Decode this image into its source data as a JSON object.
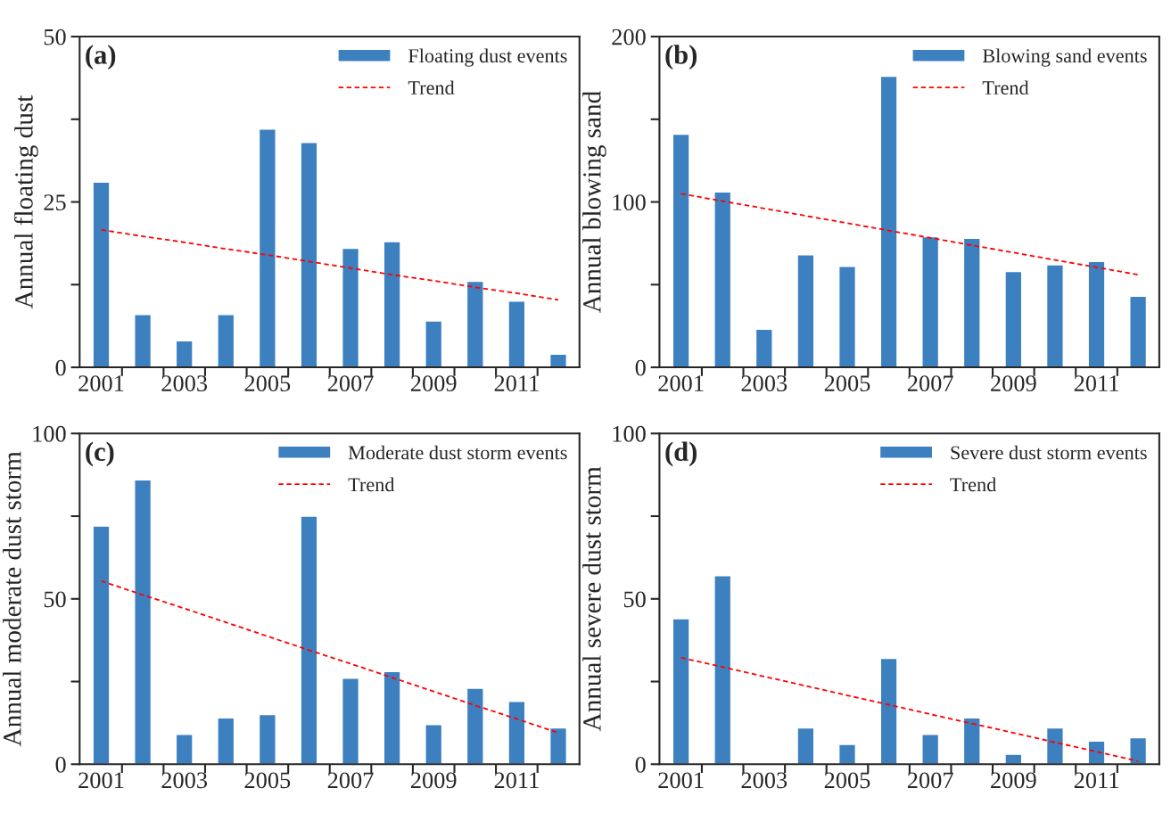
{
  "chart_data": [
    {
      "type": "bar",
      "ylabel": "Annual floating dust",
      "annotations": [
        "(a)"
      ],
      "categories": [
        "2001",
        null,
        "2003",
        null,
        "2005",
        null,
        "2007",
        null,
        "2009",
        null,
        "2011",
        null
      ],
      "legend": "top right",
      "ylim": [
        0,
        50
      ],
      "yticks": [
        0,
        {
          "value": 12.5,
          "label": null
        },
        25,
        {
          "value": 37.5,
          "label": null
        },
        50
      ],
      "series": [
        {
          "name": "Floating dust events",
          "color": "#3d80c0",
          "values": [
            28,
            8,
            4,
            8,
            36,
            34,
            18,
            19,
            7,
            13,
            10,
            2
          ]
        },
        {
          "name": "Trend",
          "type": "line",
          "line_style": "dashed",
          "color": "#ff0000",
          "values": [
            20.8,
            19.8,
            18.9,
            17.9,
            17.0,
            16.0,
            15.0,
            14.0,
            13.1,
            12.1,
            11.2,
            10.2
          ]
        }
      ]
    },
    {
      "type": "bar",
      "ylabel": "Annual blowing sand",
      "annotations": [
        "(b)"
      ],
      "categories": [
        "2001",
        null,
        "2003",
        null,
        "2005",
        null,
        "2007",
        null,
        "2009",
        null,
        "2011",
        null
      ],
      "legend": "top right",
      "ylim": [
        0,
        200
      ],
      "yticks": [
        0,
        {
          "value": 50,
          "label": null
        },
        100,
        {
          "value": 150,
          "label": null
        },
        200
      ],
      "series": [
        {
          "name": "Blowing sand events",
          "color": "#3d80c0",
          "values": [
            141,
            106,
            23,
            68,
            61,
            176,
            79,
            78,
            58,
            62,
            64,
            43
          ]
        },
        {
          "name": "Trend",
          "type": "line",
          "line_style": "dashed",
          "color": "#ff0000",
          "values": [
            105,
            100.5,
            96.1,
            91.6,
            87.2,
            82.7,
            78.3,
            73.8,
            69.4,
            64.9,
            60.5,
            56
          ]
        }
      ]
    },
    {
      "type": "bar",
      "ylabel": "Annual moderate dust storm",
      "annotations": [
        "(c)"
      ],
      "categories": [
        "2001",
        null,
        "2003",
        null,
        "2005",
        null,
        "2007",
        null,
        "2009",
        null,
        "2011",
        null
      ],
      "legend": "top right",
      "ylim": [
        0,
        100
      ],
      "yticks": [
        0,
        {
          "value": 25,
          "label": null
        },
        50,
        {
          "value": 75,
          "label": null
        },
        100
      ],
      "series": [
        {
          "name": "Moderate dust storm events",
          "color": "#3d80c0",
          "values": [
            72,
            86,
            9,
            14,
            15,
            75,
            26,
            28,
            12,
            23,
            19,
            11
          ]
        },
        {
          "name": "Trend",
          "type": "line",
          "line_style": "dashed",
          "color": "#ff0000",
          "values": [
            55.4,
            51.2,
            47.1,
            42.9,
            38.7,
            34.5,
            30.4,
            26.2,
            22.0,
            17.8,
            13.7,
            9.5
          ]
        }
      ]
    },
    {
      "type": "bar",
      "ylabel": "Annual severe dust storm",
      "annotations": [
        "(d)"
      ],
      "categories": [
        "2001",
        null,
        "2003",
        null,
        "2005",
        null,
        "2007",
        null,
        "2009",
        null,
        "2011",
        null
      ],
      "legend": "top right",
      "ylim": [
        0,
        100
      ],
      "yticks": [
        0,
        {
          "value": 25,
          "label": null
        },
        50,
        {
          "value": 75,
          "label": null
        },
        100
      ],
      "series": [
        {
          "name": "Severe dust storm events",
          "color": "#3d80c0",
          "values": [
            44,
            57,
            null,
            11,
            6,
            32,
            9,
            14,
            3,
            11,
            7,
            8
          ]
        },
        {
          "name": "Trend",
          "type": "line",
          "line_style": "dashed",
          "color": "#ff0000",
          "values": [
            32.2,
            29.4,
            26.5,
            23.7,
            20.8,
            18.0,
            15.1,
            12.3,
            9.5,
            6.6,
            3.8,
            0.9
          ]
        }
      ]
    }
  ]
}
